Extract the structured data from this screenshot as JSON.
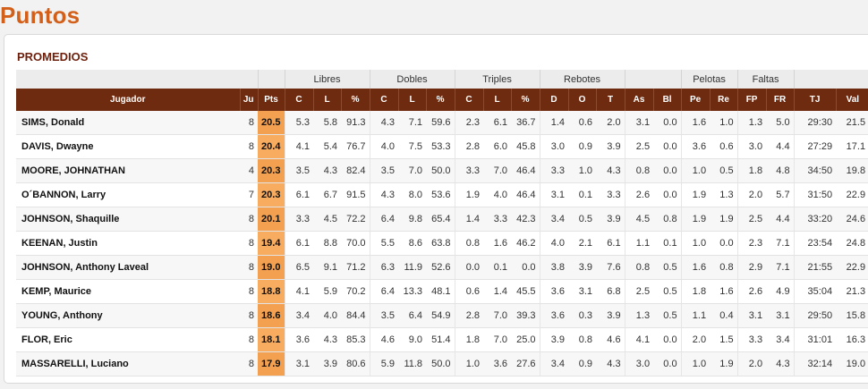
{
  "page": {
    "title": "Puntos",
    "section_title": "PROMEDIOS"
  },
  "colors": {
    "title": "#d2601a",
    "section": "#6e1f0b",
    "header_bg": "#6e2b0f",
    "pts_highlight": "#f5a85a"
  },
  "groups": {
    "libres": "Libres",
    "dobles": "Dobles",
    "triples": "Triples",
    "rebotes": "Rebotes",
    "pelotas": "Pelotas",
    "faltas": "Faltas"
  },
  "columns": [
    "Jugador",
    "Ju",
    "Pts",
    "C",
    "L",
    "%",
    "C",
    "L",
    "%",
    "C",
    "L",
    "%",
    "D",
    "O",
    "T",
    "As",
    "Bl",
    "Pe",
    "Re",
    "FP",
    "FR",
    "TJ",
    "Val"
  ],
  "rows": [
    [
      "SIMS, Donald",
      "8",
      "20.5",
      "5.3",
      "5.8",
      "91.3",
      "4.3",
      "7.1",
      "59.6",
      "2.3",
      "6.1",
      "36.7",
      "1.4",
      "0.6",
      "2.0",
      "3.1",
      "0.0",
      "1.6",
      "1.0",
      "1.3",
      "5.0",
      "29:30",
      "21.5"
    ],
    [
      "DAVIS, Dwayne",
      "8",
      "20.4",
      "4.1",
      "5.4",
      "76.7",
      "4.0",
      "7.5",
      "53.3",
      "2.8",
      "6.0",
      "45.8",
      "3.0",
      "0.9",
      "3.9",
      "2.5",
      "0.0",
      "3.6",
      "0.6",
      "3.0",
      "4.4",
      "27:29",
      "17.1"
    ],
    [
      "MOORE, JOHNATHAN",
      "4",
      "20.3",
      "3.5",
      "4.3",
      "82.4",
      "3.5",
      "7.0",
      "50.0",
      "3.3",
      "7.0",
      "46.4",
      "3.3",
      "1.0",
      "4.3",
      "0.8",
      "0.0",
      "1.0",
      "0.5",
      "1.8",
      "4.8",
      "34:50",
      "19.8"
    ],
    [
      "O´BANNON, Larry",
      "7",
      "20.3",
      "6.1",
      "6.7",
      "91.5",
      "4.3",
      "8.0",
      "53.6",
      "1.9",
      "4.0",
      "46.4",
      "3.1",
      "0.1",
      "3.3",
      "2.6",
      "0.0",
      "1.9",
      "1.3",
      "2.0",
      "5.7",
      "31:50",
      "22.9"
    ],
    [
      "JOHNSON, Shaquille",
      "8",
      "20.1",
      "3.3",
      "4.5",
      "72.2",
      "6.4",
      "9.8",
      "65.4",
      "1.4",
      "3.3",
      "42.3",
      "3.4",
      "0.5",
      "3.9",
      "4.5",
      "0.8",
      "1.9",
      "1.9",
      "2.5",
      "4.4",
      "33:20",
      "24.6"
    ],
    [
      "KEENAN, Justin",
      "8",
      "19.4",
      "6.1",
      "8.8",
      "70.0",
      "5.5",
      "8.6",
      "63.8",
      "0.8",
      "1.6",
      "46.2",
      "4.0",
      "2.1",
      "6.1",
      "1.1",
      "0.1",
      "1.0",
      "0.0",
      "2.3",
      "7.1",
      "23:54",
      "24.8"
    ],
    [
      "JOHNSON, Anthony Laveal",
      "8",
      "19.0",
      "6.5",
      "9.1",
      "71.2",
      "6.3",
      "11.9",
      "52.6",
      "0.0",
      "0.1",
      "0.0",
      "3.8",
      "3.9",
      "7.6",
      "0.8",
      "0.5",
      "1.6",
      "0.8",
      "2.9",
      "7.1",
      "21:55",
      "22.9"
    ],
    [
      "KEMP, Maurice",
      "8",
      "18.8",
      "4.1",
      "5.9",
      "70.2",
      "6.4",
      "13.3",
      "48.1",
      "0.6",
      "1.4",
      "45.5",
      "3.6",
      "3.1",
      "6.8",
      "2.5",
      "0.5",
      "1.8",
      "1.6",
      "2.6",
      "4.9",
      "35:04",
      "21.3"
    ],
    [
      "YOUNG, Anthony",
      "8",
      "18.6",
      "3.4",
      "4.0",
      "84.4",
      "3.5",
      "6.4",
      "54.9",
      "2.8",
      "7.0",
      "39.3",
      "3.6",
      "0.3",
      "3.9",
      "1.3",
      "0.5",
      "1.1",
      "0.4",
      "3.1",
      "3.1",
      "29:50",
      "15.8"
    ],
    [
      "FLOR, Eric",
      "8",
      "18.1",
      "3.6",
      "4.3",
      "85.3",
      "4.6",
      "9.0",
      "51.4",
      "1.8",
      "7.0",
      "25.0",
      "3.9",
      "0.8",
      "4.6",
      "4.1",
      "0.0",
      "2.0",
      "1.5",
      "3.3",
      "3.4",
      "31:01",
      "16.3"
    ],
    [
      "MASSARELLI, Luciano",
      "8",
      "17.9",
      "3.1",
      "3.9",
      "80.6",
      "5.9",
      "11.8",
      "50.0",
      "1.0",
      "3.6",
      "27.6",
      "3.4",
      "0.9",
      "4.3",
      "3.0",
      "0.0",
      "1.0",
      "1.9",
      "2.0",
      "4.3",
      "32:14",
      "19.0"
    ]
  ]
}
